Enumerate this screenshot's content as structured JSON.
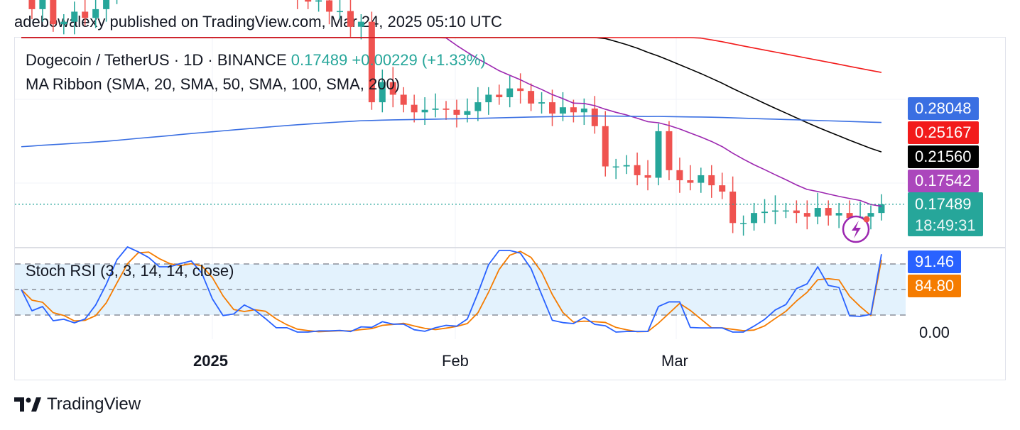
{
  "header": "adebowalexy published on TradingView.com, Mar 24, 2025 05:10 UTC",
  "legend": {
    "symbol": "Dogecoin / TetherUS · 1D · BINANCE",
    "last": "0.17489",
    "change": "+0.00229 (+1.33%)",
    "indicator": "MA Ribbon (SMA, 20, SMA, 50, SMA, 100, SMA, 200)",
    "oscillator": "Stoch RSI (3, 3, 14, 14, close)"
  },
  "price_labels": {
    "sma200": "0.28048",
    "sma100": "0.25167",
    "sma50": "0.21560",
    "sma20": "0.17542",
    "last": "0.17489",
    "countdown": "18:49:31",
    "k": "91.46",
    "d": "84.80",
    "zero": "0.00"
  },
  "x_labels": {
    "y2025": "2025",
    "feb": "Feb",
    "mar": "Mar"
  },
  "footer": {
    "brand": "TradingView"
  },
  "colors": {
    "up": "#26a69a",
    "down": "#ef5350",
    "sma20": "#9c27b0",
    "sma50": "#000000",
    "sma100": "#f21b1b",
    "sma200": "#3a6fe2",
    "k": "#2962ff",
    "d": "#f57c00",
    "band": "#e3f2fd"
  },
  "chart_data": [
    {
      "type": "candlestick",
      "title": "Dogecoin / TetherUS · 1D · BINANCE",
      "x_ticks": [
        "2025",
        "Feb",
        "Mar"
      ],
      "series": [
        {
          "name": "SMA 20",
          "last": 0.17542
        },
        {
          "name": "SMA 50",
          "last": 0.2156
        },
        {
          "name": "SMA 100",
          "last": 0.25167
        },
        {
          "name": "SMA 200",
          "last": 0.28048
        }
      ],
      "last_close": 0.17489,
      "change": 0.00229,
      "change_pct": 1.33,
      "closes": [
        0.355,
        0.33,
        0.34,
        0.318,
        0.32,
        0.328,
        0.323,
        0.33,
        0.34,
        0.36,
        0.382,
        0.372,
        0.37,
        0.365,
        0.375,
        0.38,
        0.378,
        0.371,
        0.358,
        0.362,
        0.368,
        0.365,
        0.358,
        0.36,
        0.356,
        0.355,
        0.34,
        0.336,
        0.337,
        0.328,
        0.3285,
        0.316,
        0.32,
        0.256,
        0.272,
        0.262,
        0.254,
        0.248,
        0.25,
        0.251,
        0.25,
        0.246,
        0.249,
        0.256,
        0.262,
        0.26,
        0.267,
        0.265,
        0.255,
        0.256,
        0.247,
        0.252,
        0.248,
        0.251,
        0.237,
        0.205,
        0.205,
        0.206,
        0.198,
        0.196,
        0.233,
        0.202,
        0.194,
        0.192,
        0.198,
        0.19,
        0.185,
        0.16,
        0.16,
        0.168,
        0.169,
        0.17,
        0.17,
        0.168,
        0.165,
        0.172,
        0.166,
        0.168,
        0.164,
        0.165,
        0.168,
        0.1749
      ]
    },
    {
      "type": "line",
      "title": "Stoch RSI (3, 3, 14, 14, close)",
      "ylim": [
        0,
        100
      ],
      "bands": [
        20,
        80
      ],
      "series": [
        {
          "name": "K",
          "last": 91.46
        },
        {
          "name": "D",
          "last": 84.8
        }
      ]
    }
  ]
}
